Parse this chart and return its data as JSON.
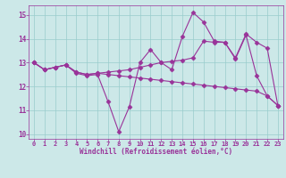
{
  "xlabel": "Windchill (Refroidissement éolien,°C)",
  "xlim": [
    -0.5,
    23.5
  ],
  "ylim": [
    9.8,
    15.4
  ],
  "yticks": [
    10,
    11,
    12,
    13,
    14,
    15
  ],
  "xticks": [
    0,
    1,
    2,
    3,
    4,
    5,
    6,
    7,
    8,
    9,
    10,
    11,
    12,
    13,
    14,
    15,
    16,
    17,
    18,
    19,
    20,
    21,
    22,
    23
  ],
  "background_color": "#cce8e8",
  "grid_color": "#99cccc",
  "line_color": "#993399",
  "line1_y": [
    13.0,
    12.7,
    12.8,
    12.9,
    12.55,
    12.45,
    12.5,
    11.35,
    10.1,
    11.15,
    13.0,
    13.55,
    13.0,
    12.7,
    14.1,
    15.1,
    14.7,
    13.9,
    13.85,
    13.15,
    14.15,
    12.45,
    11.6,
    11.2
  ],
  "line2_y": [
    13.0,
    12.7,
    12.8,
    12.9,
    12.6,
    12.5,
    12.55,
    12.5,
    12.45,
    12.4,
    12.35,
    12.3,
    12.25,
    12.2,
    12.15,
    12.1,
    12.05,
    12.0,
    11.95,
    11.9,
    11.85,
    11.8,
    11.6,
    11.2
  ],
  "line3_y": [
    13.0,
    12.7,
    12.8,
    12.9,
    12.6,
    12.5,
    12.55,
    12.6,
    12.65,
    12.7,
    12.8,
    12.9,
    13.0,
    13.05,
    13.1,
    13.2,
    13.9,
    13.85,
    13.85,
    13.2,
    14.2,
    13.85,
    13.6,
    11.2
  ]
}
